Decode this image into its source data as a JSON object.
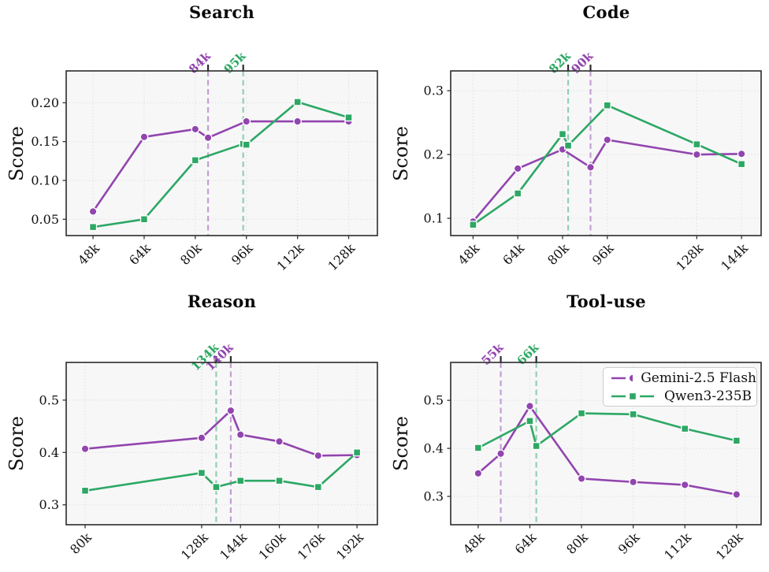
{
  "figure": {
    "background": "#ffffff",
    "plot_background": "#f7f7f8",
    "grid_color": "#dfdfdf",
    "spine_color": "#2b2b2b",
    "tick_color": "#333333",
    "tick_label_color": "#111111",
    "annotation_tick_color": "#2b2b2b",
    "accent_purple": "#9245ae",
    "accent_green": "#2da864"
  },
  "legend": {
    "location": "tool-use panel, top right",
    "entries": [
      {
        "label": "Gemini-2.5 Flash",
        "color": "#9245ae",
        "marker": "circle"
      },
      {
        "label": "Qwen3-235B",
        "color": "#2da864",
        "marker": "square"
      }
    ]
  },
  "chart_data": [
    {
      "type": "line",
      "title": "Search",
      "ylabel": "Score",
      "xtick_values": [
        48,
        64,
        80,
        96,
        112,
        128
      ],
      "xtick_labels": [
        "48k",
        "64k",
        "80k",
        "96k",
        "112k",
        "128k"
      ],
      "ytick_values": [
        0.05,
        0.1,
        0.15,
        0.2
      ],
      "ytick_labels": [
        "0.05",
        "0.10",
        "0.15",
        "0.20"
      ],
      "xlim": [
        39.6,
        137
      ],
      "ylim": [
        0.029,
        0.241
      ],
      "grid": true,
      "series": [
        {
          "name": "Gemini-2.5 Flash",
          "color": "#9245ae",
          "marker": "circle",
          "x": [
            48,
            64,
            80,
            84,
            96,
            112,
            128
          ],
          "y": [
            0.06,
            0.156,
            0.166,
            0.155,
            0.176,
            0.176,
            0.176
          ]
        },
        {
          "name": "Qwen3-235B",
          "color": "#2da864",
          "marker": "square",
          "x": [
            48,
            64,
            80,
            95,
            96,
            112,
            128
          ],
          "y": [
            0.04,
            0.05,
            0.126,
            0.147,
            0.146,
            0.201,
            0.181
          ]
        }
      ],
      "best_context_vlines": [
        {
          "x": 84,
          "label": "84k",
          "color": "#9245ae"
        },
        {
          "x": 95,
          "label": "95k",
          "color": "#2da864"
        }
      ]
    },
    {
      "type": "line",
      "title": "Code",
      "ylabel": "Score",
      "xtick_values": [
        48,
        64,
        80,
        96,
        128,
        144
      ],
      "xtick_labels": [
        "48k",
        "64k",
        "80k",
        "96k",
        "128k",
        "144k"
      ],
      "ytick_values": [
        0.1,
        0.2,
        0.3
      ],
      "ytick_labels": [
        "0.1",
        "0.2",
        "0.3"
      ],
      "xlim": [
        40,
        151
      ],
      "ylim": [
        0.073,
        0.331
      ],
      "grid": true,
      "series": [
        {
          "name": "Gemini-2.5 Flash",
          "color": "#9245ae",
          "marker": "circle",
          "x": [
            48,
            64,
            80,
            90,
            96,
            128,
            144
          ],
          "y": [
            0.095,
            0.178,
            0.208,
            0.18,
            0.223,
            0.2,
            0.201
          ]
        },
        {
          "name": "Qwen3-235B",
          "color": "#2da864",
          "marker": "square",
          "x": [
            48,
            64,
            80,
            82,
            96,
            128,
            144
          ],
          "y": [
            0.09,
            0.139,
            0.232,
            0.214,
            0.277,
            0.216,
            0.185
          ]
        }
      ],
      "best_context_vlines": [
        {
          "x": 82,
          "label": "82k",
          "color": "#2da864"
        },
        {
          "x": 90,
          "label": "90k",
          "color": "#9245ae"
        }
      ]
    },
    {
      "type": "line",
      "title": "Reason",
      "ylabel": "Score",
      "xtick_values": [
        80,
        128,
        144,
        160,
        176,
        192
      ],
      "xtick_labels": [
        "80k",
        "128k",
        "144k",
        "160k",
        "176k",
        "192k"
      ],
      "ytick_values": [
        0.3,
        0.4,
        0.5
      ],
      "ytick_labels": [
        "0.3",
        "0.4",
        "0.5"
      ],
      "xlim": [
        72.2,
        200.4
      ],
      "ylim": [
        0.262,
        0.572
      ],
      "grid": true,
      "series": [
        {
          "name": "Gemini-2.5 Flash",
          "color": "#9245ae",
          "marker": "circle",
          "x": [
            80,
            128,
            140,
            144,
            160,
            176,
            192
          ],
          "y": [
            0.407,
            0.428,
            0.48,
            0.434,
            0.421,
            0.394,
            0.395
          ]
        },
        {
          "name": "Qwen3-235B",
          "color": "#2da864",
          "marker": "square",
          "x": [
            80,
            128,
            134,
            144,
            160,
            176,
            192
          ],
          "y": [
            0.327,
            0.361,
            0.334,
            0.346,
            0.346,
            0.334,
            0.4
          ]
        }
      ],
      "best_context_vlines": [
        {
          "x": 134,
          "label": "134k",
          "color": "#2da864"
        },
        {
          "x": 140,
          "label": "140k",
          "color": "#9245ae"
        }
      ]
    },
    {
      "type": "line",
      "title": "Tool-use",
      "ylabel": "Score",
      "xtick_values": [
        48,
        64,
        80,
        96,
        112,
        128
      ],
      "xtick_labels": [
        "48k",
        "64k",
        "80k",
        "96k",
        "112k",
        "128k"
      ],
      "ytick_values": [
        0.3,
        0.4,
        0.5
      ],
      "ytick_labels": [
        "0.3",
        "0.4",
        "0.5"
      ],
      "xlim": [
        39.5,
        135.6
      ],
      "ylim": [
        0.241,
        0.579
      ],
      "grid": true,
      "has_legend": true,
      "series": [
        {
          "name": "Gemini-2.5 Flash",
          "color": "#9245ae",
          "marker": "circle",
          "x": [
            48,
            55,
            64,
            80,
            96,
            112,
            128
          ],
          "y": [
            0.348,
            0.389,
            0.488,
            0.337,
            0.33,
            0.324,
            0.304
          ]
        },
        {
          "name": "Qwen3-235B",
          "color": "#2da864",
          "marker": "square",
          "x": [
            48,
            64,
            66,
            80,
            96,
            112,
            128
          ],
          "y": [
            0.401,
            0.457,
            0.405,
            0.473,
            0.471,
            0.441,
            0.416
          ]
        }
      ],
      "best_context_vlines": [
        {
          "x": 55,
          "label": "55k",
          "color": "#9245ae"
        },
        {
          "x": 66,
          "label": "66k",
          "color": "#2da864"
        }
      ]
    }
  ]
}
